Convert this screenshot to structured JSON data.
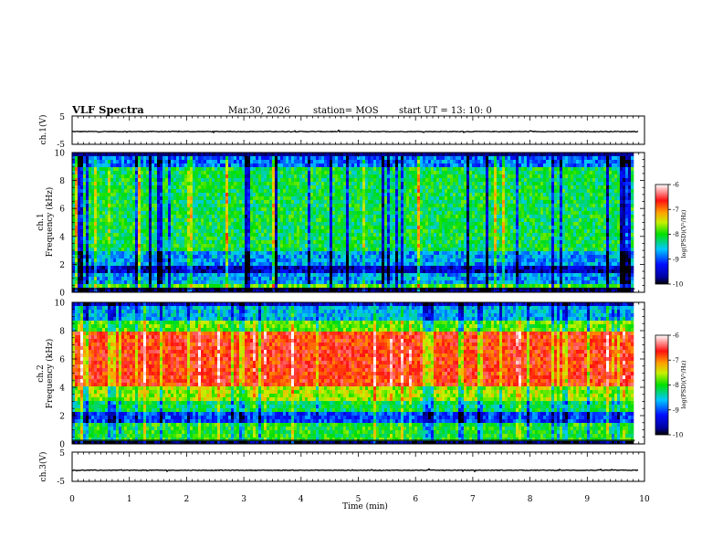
{
  "header": {
    "title": "VLF Spectra",
    "date": "Mar.30, 2026",
    "station": "station= MOS",
    "start_ut": "start  UT  =   13: 10: 0"
  },
  "chart_data": [
    {
      "type": "line",
      "panel": "ch1-waveform",
      "ylabel": "ch.1(V)",
      "ylim": [
        -5,
        5
      ],
      "yticks": [
        "5",
        "-5"
      ],
      "xlim": [
        0,
        10
      ],
      "trace_level": -0.5
    },
    {
      "type": "heatmap",
      "panel": "ch1-spectrogram",
      "ylabel": "ch.1\nFrequency (kHz)",
      "ylabel_top": "ch.1",
      "ylabel_bottom": "Frequency (kHz)",
      "ylim": [
        0,
        10
      ],
      "yticks": [
        "0",
        "2",
        "4",
        "6",
        "8",
        "10"
      ],
      "xlim": [
        0,
        10
      ],
      "data_end_min": 9.83,
      "colorbar": {
        "label": "log(PSD)(V²/Hz)",
        "range": [
          -10,
          -6
        ],
        "ticks": [
          "-6",
          "-7",
          "-8",
          "-9",
          "-10"
        ]
      }
    },
    {
      "type": "heatmap",
      "panel": "ch2-spectrogram",
      "ylabel": "ch.2\nFrequency (kHz)",
      "ylabel_top": "ch.2",
      "ylabel_bottom": "Frequency (kHz)",
      "ylim": [
        0,
        10
      ],
      "yticks": [
        "0",
        "2",
        "4",
        "6",
        "8",
        "10"
      ],
      "xlim": [
        0,
        10
      ],
      "data_end_min": 9.83,
      "colorbar": {
        "label": "log(PSD)(V²/Hz)",
        "range": [
          -10,
          -6
        ],
        "ticks": [
          "-6",
          "-7",
          "-8",
          "-9",
          "-10"
        ]
      }
    },
    {
      "type": "line",
      "panel": "ch3-waveform",
      "ylabel": "ch.3(V)",
      "ylim": [
        -5,
        5
      ],
      "yticks": [
        "5",
        "-5"
      ],
      "xlim": [
        0,
        10
      ],
      "trace_level": -1.2
    }
  ],
  "xaxis": {
    "label": "Time (min)",
    "ticks": [
      "0",
      "1",
      "2",
      "3",
      "4",
      "5",
      "6",
      "7",
      "8",
      "9",
      "10"
    ]
  }
}
